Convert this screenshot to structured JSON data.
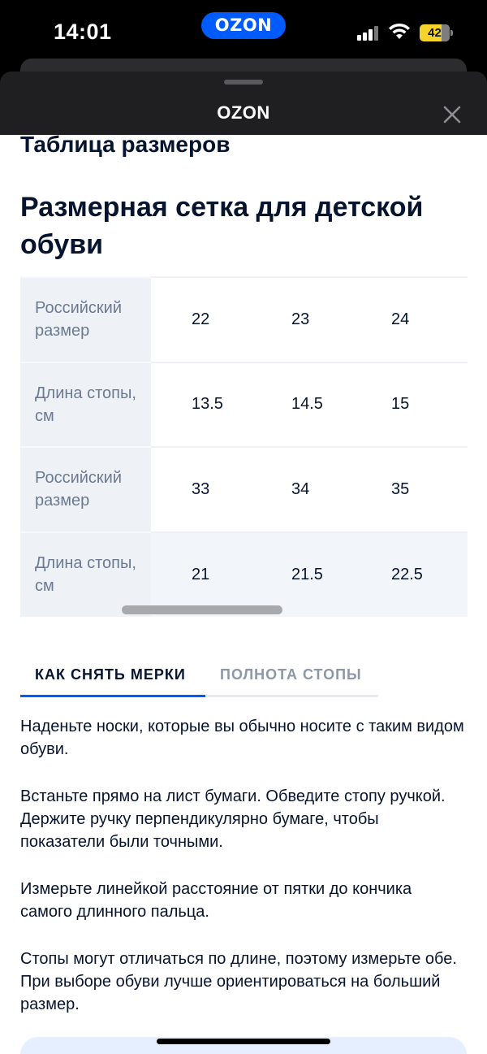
{
  "status_bar": {
    "time": "14:01",
    "app_pill": "OZON",
    "battery_level": "42"
  },
  "modal": {
    "title": "OZON"
  },
  "section_title": "Таблица размеров",
  "heading": "Размерная сетка для детской обуви",
  "size_table": {
    "rows": [
      {
        "label": "Российский размер",
        "values": [
          "22",
          "23",
          "24"
        ]
      },
      {
        "label": "Длина стопы, см",
        "values": [
          "13.5",
          "14.5",
          "15"
        ]
      },
      {
        "label": "Российский размер",
        "values": [
          "33",
          "34",
          "35"
        ]
      },
      {
        "label": "Длина стопы, см",
        "values": [
          "21",
          "21.5",
          "22.5"
        ]
      }
    ]
  },
  "tabs": [
    {
      "label": "КАК СНЯТЬ МЕРКИ",
      "active": true
    },
    {
      "label": "ПОЛНОТА СТОПЫ",
      "active": false
    }
  ],
  "instructions": [
    "Наденьте носки, которые вы обычно носите с таким видом обуви.",
    "Встаньте прямо на лист бумаги. Обведите стопу ручкой. Держите ручку перпендикулярно бумаге, чтобы показатели были точными.",
    "Измерьте линейкой расстояние от пятки до кончика самого длинного пальца.",
    "Стопы могут отличаться по длине, поэтому измерьте обе. При выборе обуви лучше ориентироваться на больший размер."
  ],
  "colors": {
    "brand": "#005bff",
    "text": "#07142e",
    "muted": "#6b7a90"
  }
}
